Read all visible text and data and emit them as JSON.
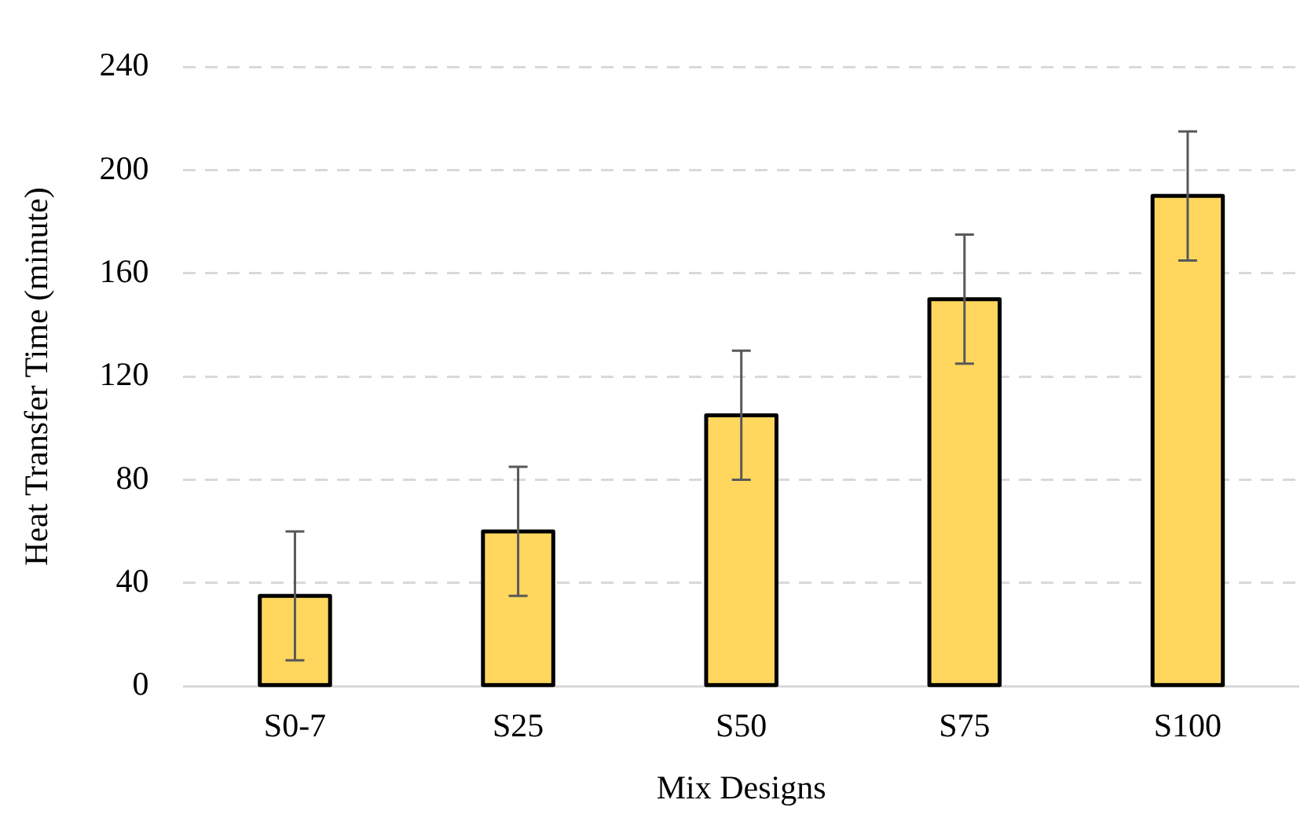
{
  "chart_data": {
    "type": "bar",
    "xlabel": "Mix Designs",
    "ylabel": "Heat Transfer Time (minute)",
    "categories": [
      "S0-7",
      "S25",
      "S50",
      "S75",
      "S100"
    ],
    "values": [
      35,
      60,
      105,
      150,
      190
    ],
    "errors": [
      25,
      25,
      25,
      25,
      25
    ],
    "color": "#ffd75e",
    "ylim": [
      0,
      240
    ],
    "yticks": [
      0,
      40,
      80,
      120,
      160,
      200,
      240
    ],
    "grid": "y"
  }
}
